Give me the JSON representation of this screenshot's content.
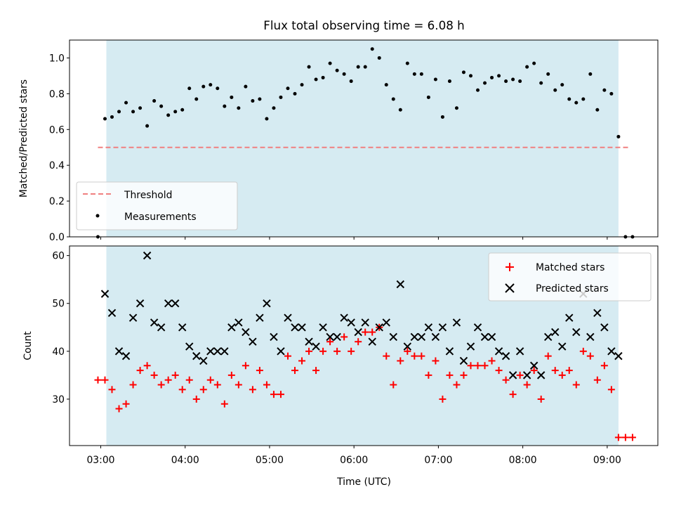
{
  "title": "Flux total observing time = 6.08 h",
  "colors": {
    "band": "#add8e6",
    "threshold": "#f08080",
    "measurement": "#000000",
    "matched": "#ff0000",
    "predicted": "#000000"
  },
  "chart_data": [
    {
      "type": "scatter",
      "ylabel": "Matched/Predicted stars",
      "ylim": [
        0.0,
        1.1
      ],
      "yticks": [
        "0.0",
        "0.2",
        "0.4",
        "0.6",
        "0.8",
        "1.0"
      ],
      "xlim_hours": [
        2.63,
        9.6
      ],
      "xticks": [
        "03:00",
        "04:00",
        "05:00",
        "06:00",
        "07:00",
        "08:00",
        "09:00"
      ],
      "observing_window": [
        "03:04",
        "09:08"
      ],
      "legend_position": "lower-left",
      "legend": [
        "Threshold",
        "Measurements"
      ],
      "threshold": {
        "name": "Threshold",
        "value": 0.5,
        "x_range": [
          "02:58",
          "09:15"
        ],
        "style": "dashed"
      },
      "series": [
        {
          "name": "Measurements",
          "marker": "dot",
          "x": [
            "02:58",
            "03:03",
            "03:08",
            "03:13",
            "03:18",
            "03:23",
            "03:28",
            "03:33",
            "03:38",
            "03:43",
            "03:48",
            "03:53",
            "03:58",
            "04:03",
            "04:08",
            "04:13",
            "04:18",
            "04:23",
            "04:28",
            "04:33",
            "04:38",
            "04:43",
            "04:48",
            "04:53",
            "04:58",
            "05:03",
            "05:08",
            "05:13",
            "05:18",
            "05:23",
            "05:28",
            "05:33",
            "05:38",
            "05:43",
            "05:48",
            "05:53",
            "05:58",
            "06:03",
            "06:08",
            "06:13",
            "06:18",
            "06:23",
            "06:28",
            "06:33",
            "06:38",
            "06:43",
            "06:48",
            "06:53",
            "06:58",
            "07:03",
            "07:08",
            "07:13",
            "07:18",
            "07:23",
            "07:28",
            "07:33",
            "07:38",
            "07:43",
            "07:48",
            "07:53",
            "07:58",
            "08:03",
            "08:08",
            "08:13",
            "08:18",
            "08:23",
            "08:28",
            "08:33",
            "08:38",
            "08:43",
            "08:48",
            "08:53",
            "08:58",
            "09:03",
            "09:08",
            "09:13",
            "09:18"
          ],
          "y": [
            0.0,
            0.66,
            0.67,
            0.7,
            0.75,
            0.7,
            0.72,
            0.62,
            0.76,
            0.73,
            0.68,
            0.7,
            0.71,
            0.83,
            0.77,
            0.84,
            0.85,
            0.83,
            0.73,
            0.78,
            0.72,
            0.84,
            0.76,
            0.77,
            0.66,
            0.72,
            0.78,
            0.83,
            0.8,
            0.85,
            0.95,
            0.88,
            0.89,
            0.97,
            0.93,
            0.91,
            0.87,
            0.95,
            0.95,
            1.05,
            1.0,
            0.85,
            0.77,
            0.71,
            0.97,
            0.91,
            0.91,
            0.78,
            0.88,
            0.67,
            0.87,
            0.72,
            0.92,
            0.9,
            0.82,
            0.86,
            0.89,
            0.9,
            0.87,
            0.88,
            0.87,
            0.95,
            0.97,
            0.86,
            0.91,
            0.82,
            0.85,
            0.77,
            0.75,
            0.77,
            0.91,
            0.71,
            0.82,
            0.8,
            0.56,
            0.0,
            0.0
          ]
        }
      ]
    },
    {
      "type": "scatter",
      "xlabel": "Time (UTC)",
      "ylabel": "Count",
      "ylim": [
        20.3,
        62.0
      ],
      "yticks": [
        "30",
        "40",
        "50",
        "60"
      ],
      "xlim_hours": [
        2.63,
        9.6
      ],
      "xticks": [
        "03:00",
        "04:00",
        "05:00",
        "06:00",
        "07:00",
        "08:00",
        "09:00"
      ],
      "observing_window": [
        "03:04",
        "09:08"
      ],
      "legend_position": "top-right",
      "legend": [
        "Matched stars",
        "Predicted stars"
      ],
      "series": [
        {
          "name": "Matched stars",
          "marker": "plus",
          "x": [
            "02:58",
            "03:03",
            "03:08",
            "03:13",
            "03:18",
            "03:23",
            "03:28",
            "03:33",
            "03:38",
            "03:43",
            "03:48",
            "03:53",
            "03:58",
            "04:03",
            "04:08",
            "04:13",
            "04:18",
            "04:23",
            "04:28",
            "04:33",
            "04:38",
            "04:43",
            "04:48",
            "04:53",
            "04:58",
            "05:03",
            "05:08",
            "05:13",
            "05:18",
            "05:23",
            "05:28",
            "05:33",
            "05:38",
            "05:43",
            "05:48",
            "05:53",
            "05:58",
            "06:03",
            "06:08",
            "06:13",
            "06:18",
            "06:23",
            "06:28",
            "06:33",
            "06:38",
            "06:43",
            "06:48",
            "06:53",
            "06:58",
            "07:03",
            "07:08",
            "07:13",
            "07:18",
            "07:23",
            "07:28",
            "07:33",
            "07:38",
            "07:43",
            "07:48",
            "07:53",
            "07:58",
            "08:03",
            "08:08",
            "08:13",
            "08:18",
            "08:23",
            "08:28",
            "08:33",
            "08:38",
            "08:43",
            "08:48",
            "08:53",
            "08:58",
            "09:03",
            "09:08",
            "09:13",
            "09:18"
          ],
          "y": [
            34,
            34,
            32,
            28,
            29,
            33,
            36,
            37,
            35,
            33,
            34,
            35,
            32,
            34,
            30,
            32,
            34,
            33,
            29,
            35,
            33,
            37,
            32,
            36,
            33,
            31,
            31,
            39,
            36,
            38,
            40,
            36,
            40,
            42,
            40,
            43,
            40,
            42,
            44,
            44,
            45,
            39,
            33,
            38,
            40,
            39,
            39,
            35,
            38,
            30,
            35,
            33,
            35,
            37,
            37,
            37,
            38,
            36,
            34,
            31,
            35,
            33,
            36,
            30,
            39,
            36,
            35,
            36,
            33,
            40,
            39,
            34,
            37,
            32,
            22,
            22,
            22
          ]
        },
        {
          "name": "Predicted stars",
          "marker": "x",
          "x": [
            "03:03",
            "03:08",
            "03:13",
            "03:18",
            "03:23",
            "03:28",
            "03:33",
            "03:38",
            "03:43",
            "03:48",
            "03:53",
            "03:58",
            "04:03",
            "04:08",
            "04:13",
            "04:18",
            "04:23",
            "04:28",
            "04:33",
            "04:38",
            "04:43",
            "04:48",
            "04:53",
            "04:58",
            "05:03",
            "05:08",
            "05:13",
            "05:18",
            "05:23",
            "05:28",
            "05:33",
            "05:38",
            "05:43",
            "05:48",
            "05:53",
            "05:58",
            "06:03",
            "06:08",
            "06:13",
            "06:18",
            "06:23",
            "06:28",
            "06:33",
            "06:38",
            "06:43",
            "06:48",
            "06:53",
            "06:58",
            "07:03",
            "07:08",
            "07:13",
            "07:18",
            "07:23",
            "07:28",
            "07:33",
            "07:38",
            "07:43",
            "07:48",
            "07:53",
            "07:58",
            "08:03",
            "08:08",
            "08:13",
            "08:18",
            "08:23",
            "08:28",
            "08:33",
            "08:38",
            "08:43",
            "08:48",
            "08:53",
            "08:58",
            "09:03",
            "09:08"
          ],
          "y": [
            52,
            48,
            40,
            39,
            47,
            50,
            60,
            46,
            45,
            50,
            50,
            45,
            41,
            39,
            38,
            40,
            40,
            40,
            45,
            46,
            44,
            42,
            47,
            50,
            43,
            40,
            47,
            45,
            45,
            42,
            41,
            45,
            43,
            43,
            47,
            46,
            44,
            46,
            42,
            45,
            46,
            43,
            54,
            41,
            43,
            43,
            45,
            43,
            45,
            40,
            46,
            38,
            41,
            45,
            43,
            43,
            40,
            39,
            35,
            40,
            35,
            37,
            35,
            43,
            44,
            41,
            47,
            44,
            52,
            43,
            48,
            45,
            40,
            39
          ]
        }
      ]
    }
  ]
}
